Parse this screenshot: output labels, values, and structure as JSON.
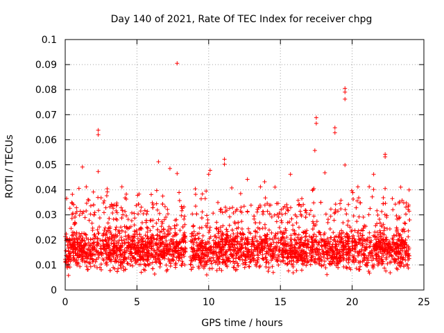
{
  "chart_data": {
    "type": "scatter",
    "title": "Day 140 of 2021, Rate Of TEC Index for receiver chpg",
    "xlabel": "GPS time / hours",
    "ylabel": "ROTI / TECUs",
    "xlim": [
      0,
      25
    ],
    "ylim": [
      0,
      0.1
    ],
    "x_ticks": [
      0,
      5,
      10,
      15,
      20,
      25
    ],
    "y_ticks": [
      0,
      0.01,
      0.02,
      0.03,
      0.04,
      0.05,
      0.06,
      0.07,
      0.08,
      0.09,
      0.1
    ],
    "x_tick_labels": [
      "0",
      "5",
      "10",
      "15",
      "20",
      "25"
    ],
    "y_tick_labels": [
      "0",
      "0.01",
      "0.02",
      "0.03",
      "0.04",
      "0.05",
      "0.06",
      "0.07",
      "0.08",
      "0.09",
      "0.1"
    ],
    "grid": true,
    "marker": "+",
    "series": [
      {
        "name": "ROTI",
        "color": "#ff0000",
        "x_range": [
          0,
          24
        ],
        "data_gap_hours": [
          8.4,
          8.7
        ],
        "typical_range": [
          0.005,
          0.025
        ],
        "notable_points": [
          {
            "x": 7.8,
            "y": 0.0905
          },
          {
            "x": 19.5,
            "y": 0.0805
          },
          {
            "x": 19.5,
            "y": 0.079
          },
          {
            "x": 19.5,
            "y": 0.0762
          },
          {
            "x": 17.5,
            "y": 0.0688
          },
          {
            "x": 17.5,
            "y": 0.0665
          },
          {
            "x": 18.8,
            "y": 0.0648
          },
          {
            "x": 18.8,
            "y": 0.0628
          },
          {
            "x": 2.3,
            "y": 0.0638
          },
          {
            "x": 2.3,
            "y": 0.062
          },
          {
            "x": 17.4,
            "y": 0.0557
          },
          {
            "x": 22.3,
            "y": 0.0542
          },
          {
            "x": 22.3,
            "y": 0.0532
          },
          {
            "x": 11.1,
            "y": 0.0522
          },
          {
            "x": 11.1,
            "y": 0.0502
          },
          {
            "x": 6.5,
            "y": 0.0512
          },
          {
            "x": 19.5,
            "y": 0.0499
          },
          {
            "x": 1.2,
            "y": 0.0491
          },
          {
            "x": 2.3,
            "y": 0.0473
          },
          {
            "x": 7.3,
            "y": 0.0485
          },
          {
            "x": 7.8,
            "y": 0.0465
          },
          {
            "x": 10.1,
            "y": 0.0478
          },
          {
            "x": 10.0,
            "y": 0.0462
          },
          {
            "x": 21.5,
            "y": 0.0462
          },
          {
            "x": 18.1,
            "y": 0.0468
          },
          {
            "x": 15.7,
            "y": 0.0462
          },
          {
            "x": 12.7,
            "y": 0.0442
          },
          {
            "x": 13.9,
            "y": 0.0432
          },
          {
            "x": 20.4,
            "y": 0.0412
          },
          {
            "x": 22.3,
            "y": 0.0405
          },
          {
            "x": 0.5,
            "y": 0.0382
          },
          {
            "x": 2.5,
            "y": 0.0368
          },
          {
            "x": 6.8,
            "y": 0.0375
          },
          {
            "x": 23.3,
            "y": 0.0352
          },
          {
            "x": 22.8,
            "y": 0.0365
          },
          {
            "x": 23.9,
            "y": 0.0322
          }
        ]
      }
    ]
  }
}
